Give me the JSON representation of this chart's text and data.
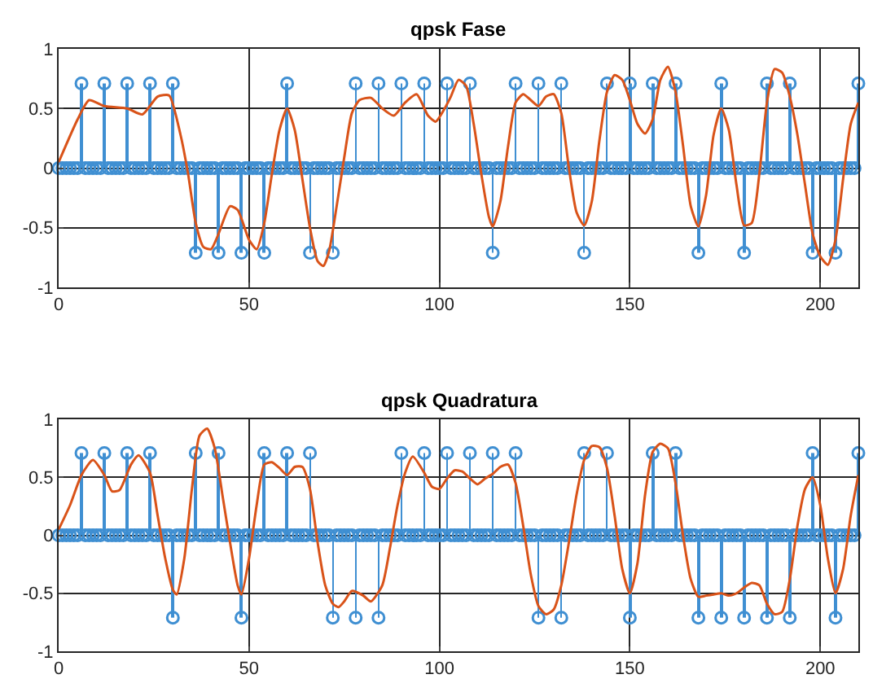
{
  "chart_data": [
    {
      "type": "lollipop",
      "title": "qpsk Fase",
      "xlim": [
        0,
        210
      ],
      "xticks": [
        0,
        50,
        100,
        150,
        200
      ],
      "ylim": [
        -1,
        1
      ],
      "yticks": [
        -1,
        -0.5,
        0,
        0.5,
        1
      ],
      "grid": true,
      "x": [
        0,
        1,
        2,
        3,
        4,
        5,
        6,
        7,
        8,
        9,
        10,
        11,
        12,
        13,
        14,
        15,
        16,
        17,
        18,
        19,
        20,
        21,
        22,
        23,
        24,
        25,
        26,
        27,
        28,
        29,
        30,
        31,
        32,
        33,
        34,
        35,
        36,
        37,
        38,
        39,
        40,
        41,
        42,
        43,
        44,
        45,
        46,
        47,
        48,
        49,
        50,
        51,
        52,
        53,
        54,
        55,
        56,
        57,
        58,
        59,
        60,
        61,
        62,
        63,
        64,
        65,
        66,
        67,
        68,
        69,
        70,
        71,
        72,
        73,
        74,
        75,
        76,
        77,
        78,
        79,
        80,
        81,
        82,
        83,
        84,
        85,
        86,
        87,
        88,
        89,
        90,
        91,
        92,
        93,
        94,
        95,
        96,
        97,
        98,
        99,
        100,
        101,
        102,
        103,
        104,
        105,
        106,
        107,
        108,
        109,
        110,
        111,
        112,
        113,
        114,
        115,
        116,
        117,
        118,
        119,
        120,
        121,
        122,
        123,
        124,
        125,
        126,
        127,
        128,
        129,
        130,
        131,
        132,
        133,
        134,
        135,
        136,
        137,
        138,
        139,
        140,
        141,
        142,
        143,
        144,
        145,
        146,
        147,
        148,
        149,
        150,
        151,
        152,
        153,
        154,
        155,
        156,
        157,
        158,
        159,
        160,
        161,
        162,
        163,
        164,
        165,
        166,
        167,
        168,
        169,
        170,
        171,
        172,
        173,
        174,
        175,
        176,
        177,
        178,
        179,
        180,
        181,
        182,
        183,
        184,
        185,
        186,
        187,
        188,
        189,
        190,
        191,
        192,
        193,
        194,
        195,
        196,
        197,
        198,
        199,
        200,
        201,
        202,
        203,
        204,
        205,
        206,
        207,
        208,
        209,
        210
      ],
      "series": [
        {
          "color": "#3f8fd2",
          "marker": "circle",
          "values": [
            0,
            0,
            0,
            0,
            0,
            0,
            0.71,
            0,
            0,
            0,
            0,
            0,
            0.71,
            0,
            0,
            0,
            0,
            0,
            0.71,
            0,
            0,
            0,
            0,
            0,
            0.71,
            0,
            0,
            0,
            0,
            0,
            0.71,
            0,
            0,
            0,
            0,
            0,
            -0.71,
            0,
            0,
            0,
            0,
            0,
            -0.71,
            0,
            0,
            0,
            0,
            0,
            -0.71,
            0,
            0,
            0,
            0,
            0,
            -0.71,
            0,
            0,
            0,
            0,
            0,
            0.71,
            0,
            0,
            0,
            0,
            0,
            -0.71,
            0,
            0,
            0,
            0,
            0,
            -0.71,
            0,
            0,
            0,
            0,
            0,
            0.71,
            0,
            0,
            0,
            0,
            0,
            0.71,
            0,
            0,
            0,
            0,
            0,
            0.71,
            0,
            0,
            0,
            0,
            0,
            0.71,
            0,
            0,
            0,
            0,
            0,
            0.71,
            0,
            0,
            0,
            0,
            0,
            0.71,
            0,
            0,
            0,
            0,
            0,
            -0.71,
            0,
            0,
            0,
            0,
            0,
            0.71,
            0,
            0,
            0,
            0,
            0,
            0.71,
            0,
            0,
            0,
            0,
            0,
            0.71,
            0,
            0,
            0,
            0,
            0,
            -0.71,
            0,
            0,
            0,
            0,
            0,
            0.71,
            0,
            0,
            0,
            0,
            0,
            0.71,
            0,
            0,
            0,
            0,
            0,
            0.71,
            0,
            0,
            0,
            0,
            0,
            0.71,
            0,
            0,
            0,
            0,
            0,
            -0.71,
            0,
            0,
            0,
            0,
            0,
            0.71,
            0,
            0,
            0,
            0,
            0,
            -0.71,
            0,
            0,
            0,
            0,
            0,
            0.71,
            0,
            0,
            0,
            0,
            0,
            0.71,
            0,
            0,
            0,
            0,
            0,
            -0.71,
            0,
            0,
            0,
            0,
            0,
            -0.71,
            0,
            0,
            0,
            0,
            0,
            0.71
          ]
        },
        {
          "type": "line",
          "color": "#d95319",
          "marker": "none",
          "x": [
            0,
            5,
            8,
            12,
            18,
            22,
            26,
            29,
            32,
            34,
            36,
            38,
            40,
            42,
            45,
            47,
            50,
            52,
            54,
            56,
            58,
            60,
            62,
            64,
            66,
            68,
            69.5,
            71,
            73,
            75,
            77,
            79,
            82,
            85,
            88,
            91,
            94,
            97,
            99,
            101,
            103,
            105,
            107,
            109,
            111,
            113,
            114,
            116,
            118,
            120,
            122,
            124,
            126,
            128,
            130,
            132,
            134,
            136,
            138,
            140,
            142,
            144,
            146,
            148,
            150,
            152,
            154,
            156,
            158,
            160,
            162,
            164,
            166,
            168,
            170,
            172,
            174,
            176,
            178,
            180,
            182,
            184,
            186,
            188,
            190,
            192,
            194,
            196,
            198,
            200,
            202,
            204,
            206,
            208,
            210
          ],
          "values": [
            0.05,
            0.41,
            0.57,
            0.52,
            0.5,
            0.45,
            0.6,
            0.61,
            0.28,
            -0.05,
            -0.46,
            -0.66,
            -0.68,
            -0.55,
            -0.32,
            -0.35,
            -0.6,
            -0.68,
            -0.46,
            -0.05,
            0.32,
            0.5,
            0.32,
            -0.09,
            -0.5,
            -0.78,
            -0.82,
            -0.7,
            -0.32,
            0.09,
            0.46,
            0.57,
            0.59,
            0.5,
            0.44,
            0.55,
            0.62,
            0.44,
            0.39,
            0.48,
            0.6,
            0.74,
            0.69,
            0.37,
            -0.05,
            -0.41,
            -0.49,
            -0.28,
            0.18,
            0.55,
            0.62,
            0.57,
            0.52,
            0.6,
            0.62,
            0.46,
            0,
            -0.37,
            -0.48,
            -0.28,
            0.23,
            0.64,
            0.78,
            0.74,
            0.57,
            0.37,
            0.29,
            0.41,
            0.74,
            0.85,
            0.64,
            0.18,
            -0.32,
            -0.49,
            -0.23,
            0.28,
            0.5,
            0.32,
            -0.14,
            -0.48,
            -0.46,
            -0.05,
            0.55,
            0.83,
            0.8,
            0.6,
            0.28,
            -0.14,
            -0.55,
            -0.74,
            -0.81,
            -0.6,
            -0.09,
            0.37,
            0.55
          ]
        }
      ]
    },
    {
      "type": "lollipop",
      "title": "qpsk Quadratura",
      "xlim": [
        0,
        210
      ],
      "xticks": [
        0,
        50,
        100,
        150,
        200
      ],
      "ylim": [
        -1,
        1
      ],
      "yticks": [
        -1,
        -0.5,
        0,
        0.5,
        1
      ],
      "grid": true,
      "x": [
        0,
        1,
        2,
        3,
        4,
        5,
        6,
        7,
        8,
        9,
        10,
        11,
        12,
        13,
        14,
        15,
        16,
        17,
        18,
        19,
        20,
        21,
        22,
        23,
        24,
        25,
        26,
        27,
        28,
        29,
        30,
        31,
        32,
        33,
        34,
        35,
        36,
        37,
        38,
        39,
        40,
        41,
        42,
        43,
        44,
        45,
        46,
        47,
        48,
        49,
        50,
        51,
        52,
        53,
        54,
        55,
        56,
        57,
        58,
        59,
        60,
        61,
        62,
        63,
        64,
        65,
        66,
        67,
        68,
        69,
        70,
        71,
        72,
        73,
        74,
        75,
        76,
        77,
        78,
        79,
        80,
        81,
        82,
        83,
        84,
        85,
        86,
        87,
        88,
        89,
        90,
        91,
        92,
        93,
        94,
        95,
        96,
        97,
        98,
        99,
        100,
        101,
        102,
        103,
        104,
        105,
        106,
        107,
        108,
        109,
        110,
        111,
        112,
        113,
        114,
        115,
        116,
        117,
        118,
        119,
        120,
        121,
        122,
        123,
        124,
        125,
        126,
        127,
        128,
        129,
        130,
        131,
        132,
        133,
        134,
        135,
        136,
        137,
        138,
        139,
        140,
        141,
        142,
        143,
        144,
        145,
        146,
        147,
        148,
        149,
        150,
        151,
        152,
        153,
        154,
        155,
        156,
        157,
        158,
        159,
        160,
        161,
        162,
        163,
        164,
        165,
        166,
        167,
        168,
        169,
        170,
        171,
        172,
        173,
        174,
        175,
        176,
        177,
        178,
        179,
        180,
        181,
        182,
        183,
        184,
        185,
        186,
        187,
        188,
        189,
        190,
        191,
        192,
        193,
        194,
        195,
        196,
        197,
        198,
        199,
        200,
        201,
        202,
        203,
        204,
        205,
        206,
        207,
        208,
        209,
        210
      ],
      "series": [
        {
          "color": "#3f8fd2",
          "marker": "circle",
          "values": [
            0,
            0,
            0,
            0,
            0,
            0,
            0.71,
            0,
            0,
            0,
            0,
            0,
            0.71,
            0,
            0,
            0,
            0,
            0,
            0.71,
            0,
            0,
            0,
            0,
            0,
            0.71,
            0,
            0,
            0,
            0,
            0,
            -0.71,
            0,
            0,
            0,
            0,
            0,
            0.71,
            0,
            0,
            0,
            0,
            0,
            0.71,
            0,
            0,
            0,
            0,
            0,
            -0.71,
            0,
            0,
            0,
            0,
            0,
            0.71,
            0,
            0,
            0,
            0,
            0,
            0.71,
            0,
            0,
            0,
            0,
            0,
            0.71,
            0,
            0,
            0,
            0,
            0,
            -0.71,
            0,
            0,
            0,
            0,
            0,
            -0.71,
            0,
            0,
            0,
            0,
            0,
            -0.71,
            0,
            0,
            0,
            0,
            0,
            0.71,
            0,
            0,
            0,
            0,
            0,
            0.71,
            0,
            0,
            0,
            0,
            0,
            0.71,
            0,
            0,
            0,
            0,
            0,
            0.71,
            0,
            0,
            0,
            0,
            0,
            0.71,
            0,
            0,
            0,
            0,
            0,
            0.71,
            0,
            0,
            0,
            0,
            0,
            -0.71,
            0,
            0,
            0,
            0,
            0,
            -0.71,
            0,
            0,
            0,
            0,
            0,
            0.71,
            0,
            0,
            0,
            0,
            0,
            0.71,
            0,
            0,
            0,
            0,
            0,
            -0.71,
            0,
            0,
            0,
            0,
            0,
            0.71,
            0,
            0,
            0,
            0,
            0,
            0.71,
            0,
            0,
            0,
            0,
            0,
            -0.71,
            0,
            0,
            0,
            0,
            0,
            -0.71,
            0,
            0,
            0,
            0,
            0,
            -0.71,
            0,
            0,
            0,
            0,
            0,
            -0.71,
            0,
            0,
            0,
            0,
            0,
            -0.71,
            0,
            0,
            0,
            0,
            0,
            0.71,
            0,
            0,
            0,
            0,
            0,
            -0.71,
            0,
            0,
            0,
            0,
            0,
            0.71
          ]
        },
        {
          "type": "line",
          "color": "#d95319",
          "marker": "none",
          "x": [
            0,
            3,
            6,
            9,
            12,
            14,
            16,
            19,
            21,
            24,
            26,
            28,
            30,
            31,
            33,
            35,
            37,
            39,
            41,
            43,
            45,
            47,
            48,
            50,
            52,
            54,
            56,
            58,
            60,
            62,
            64,
            66,
            68,
            70,
            72,
            73.5,
            75,
            77,
            80,
            82,
            85,
            87,
            89,
            91,
            93,
            96,
            98,
            100,
            102,
            104,
            106,
            108,
            110,
            112,
            114,
            116,
            118,
            120,
            122,
            124,
            126,
            128,
            130,
            132,
            134,
            136,
            138,
            140,
            142,
            144,
            146,
            148,
            150,
            152,
            154,
            156,
            158,
            160,
            162,
            164,
            166,
            168,
            170,
            172,
            174,
            176,
            178,
            180,
            182,
            184,
            186,
            188,
            190,
            192,
            194,
            196,
            198,
            200,
            202,
            204,
            206,
            208,
            210
          ],
          "values": [
            0.05,
            0.26,
            0.52,
            0.65,
            0.52,
            0.38,
            0.39,
            0.61,
            0.69,
            0.54,
            0.17,
            -0.2,
            -0.47,
            -0.51,
            -0.2,
            0.4,
            0.86,
            0.92,
            0.75,
            0.35,
            -0.06,
            -0.43,
            -0.51,
            -0.2,
            0.26,
            0.61,
            0.63,
            0.58,
            0.52,
            0.59,
            0.59,
            0.4,
            -0.06,
            -0.43,
            -0.59,
            -0.62,
            -0.57,
            -0.48,
            -0.52,
            -0.57,
            -0.43,
            -0.11,
            0.26,
            0.54,
            0.68,
            0.54,
            0.42,
            0.4,
            0.49,
            0.56,
            0.55,
            0.49,
            0.44,
            0.49,
            0.53,
            0.59,
            0.61,
            0.45,
            0.08,
            -0.34,
            -0.61,
            -0.68,
            -0.64,
            -0.43,
            -0.06,
            0.35,
            0.65,
            0.77,
            0.76,
            0.58,
            0.17,
            -0.29,
            -0.5,
            -0.24,
            0.35,
            0.72,
            0.79,
            0.75,
            0.45,
            -0.01,
            -0.38,
            -0.53,
            -0.52,
            -0.51,
            -0.5,
            -0.52,
            -0.5,
            -0.45,
            -0.41,
            -0.43,
            -0.59,
            -0.68,
            -0.66,
            -0.38,
            0.08,
            0.4,
            0.5,
            0.26,
            -0.2,
            -0.5,
            -0.29,
            0.17,
            0.52
          ]
        }
      ]
    }
  ]
}
